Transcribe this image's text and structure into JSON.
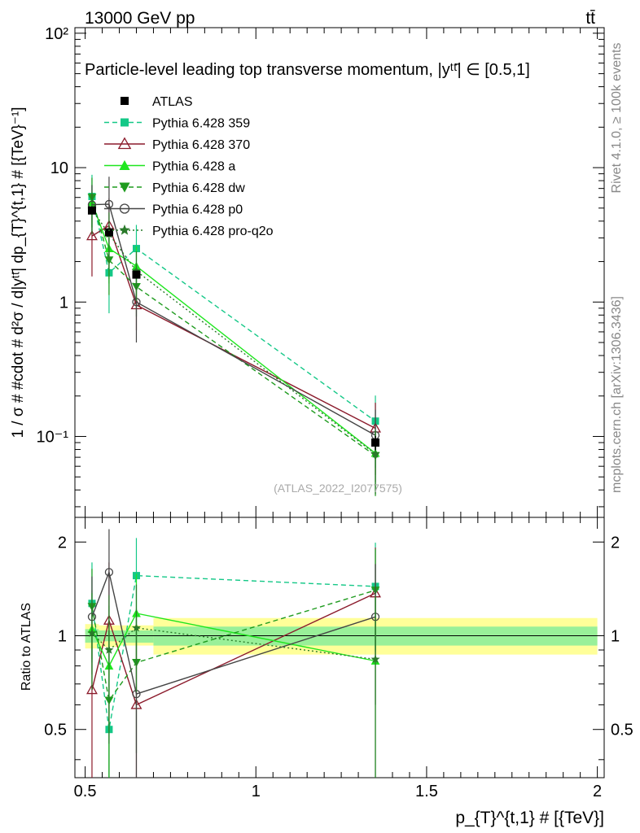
{
  "header": {
    "energy_label": "13000 GeV pp",
    "process_label": "tt̄"
  },
  "side_labels": {
    "rivet": "Rivet 4.1.0, ≥ 100k events",
    "source": "mcplots.cern.ch [arXiv:1306.3436]"
  },
  "colors": {
    "ATLAS": "#000000",
    "p359": "#14c887",
    "p370": "#8b1a2b",
    "a": "#1ee61e",
    "dw": "#1e9b1e",
    "p0": "#444444",
    "proq2o": "#2a7a2a",
    "band_outer": "#ffff99",
    "band_inner": "#99f099"
  },
  "chart_data": {
    "type": "scatter",
    "title": "Particle-level leading top transverse momentum, |yᵗᵗ̄| ∈ [0.5,1]",
    "watermark": "(ATLAS_2022_I2077575)",
    "xlabel": "p_{T}^{t,1} # [{TeV}]",
    "ylabel": "1 / σ # #cdot # d²σ / d|yᵗᵗ̄| dp_{T}^{t,1} # [{TeV}⁻¹]",
    "ratio_ylabel": "Ratio to ATLAS",
    "xlim": [
      0.47,
      2.02
    ],
    "ylim": [
      0.025,
      110
    ],
    "ratio_ylim": [
      0.35,
      2.4
    ],
    "x_ticks": [
      "0.5",
      "1",
      "1.5",
      "2"
    ],
    "y_ticks": [
      "10⁻¹",
      "1",
      "10",
      "10²"
    ],
    "ratio_ticks": [
      "0.5",
      "1",
      "2"
    ],
    "x": [
      0.52,
      0.57,
      0.65,
      1.35
    ],
    "data": {
      "name": "ATLAS",
      "values": [
        4.8,
        3.3,
        1.6,
        0.09
      ],
      "stat_rel": [
        0.06,
        0.06,
        0.06,
        0.12
      ],
      "band_bins": [
        [
          0.5,
          0.54
        ],
        [
          0.54,
          0.6
        ],
        [
          0.6,
          0.7
        ],
        [
          0.7,
          2.0
        ]
      ],
      "band_outer": [
        [
          0.91,
          1.09
        ],
        [
          0.92,
          1.08
        ],
        [
          0.93,
          1.08
        ],
        [
          0.87,
          1.14
        ]
      ],
      "band_inner": [
        [
          0.95,
          1.05
        ],
        [
          0.96,
          1.04
        ],
        [
          0.95,
          1.04
        ],
        [
          0.93,
          1.07
        ]
      ]
    },
    "series": [
      {
        "name": "Pythia 6.428 359",
        "key": "p359",
        "marker": "square",
        "dash": "6,4",
        "values": [
          6.1,
          1.65,
          2.5,
          0.13
        ],
        "ratio": [
          1.27,
          0.5,
          1.56,
          1.44
        ],
        "ratio_err": [
          0.45,
          0.5,
          0.5,
          0.55
        ]
      },
      {
        "name": "Pythia 6.428 370",
        "key": "p370",
        "marker": "triangle-open",
        "dash": "",
        "values": [
          3.1,
          3.7,
          0.95,
          0.115
        ],
        "ratio": [
          0.67,
          1.12,
          0.6,
          1.37
        ],
        "ratio_err": [
          0.5,
          0.6,
          0.35,
          0.55
        ]
      },
      {
        "name": "Pythia 6.428 a",
        "key": "a",
        "marker": "triangle",
        "dash": "",
        "values": [
          5.5,
          2.5,
          1.85,
          0.075
        ],
        "ratio": [
          1.05,
          0.8,
          1.18,
          0.83
        ],
        "ratio_err": [
          0.35,
          0.45,
          0.4,
          0.5
        ]
      },
      {
        "name": "Pythia 6.428 dw",
        "key": "dw",
        "marker": "triangle-down",
        "dash": "6,4",
        "values": [
          6.0,
          2.05,
          1.3,
          0.072
        ],
        "ratio": [
          1.24,
          0.62,
          0.82,
          1.4
        ],
        "ratio_err": [
          0.4,
          0.45,
          0.4,
          0.5
        ]
      },
      {
        "name": "Pythia 6.428 p0",
        "key": "p0",
        "marker": "circle-open",
        "dash": "",
        "values": [
          5.3,
          5.35,
          1.0,
          0.102
        ],
        "ratio": [
          1.15,
          1.6,
          0.65,
          1.15
        ],
        "ratio_err": [
          0.4,
          0.6,
          0.5,
          0.55
        ]
      },
      {
        "name": "Pythia 6.428 pro-q2o",
        "key": "proq2o",
        "marker": "star",
        "dash": "2,3",
        "values": [
          4.9,
          3.2,
          1.7,
          0.074
        ],
        "ratio": [
          1.02,
          0.9,
          1.06,
          0.84
        ],
        "ratio_err": [
          0.35,
          0.45,
          0.4,
          0.5
        ]
      }
    ]
  }
}
